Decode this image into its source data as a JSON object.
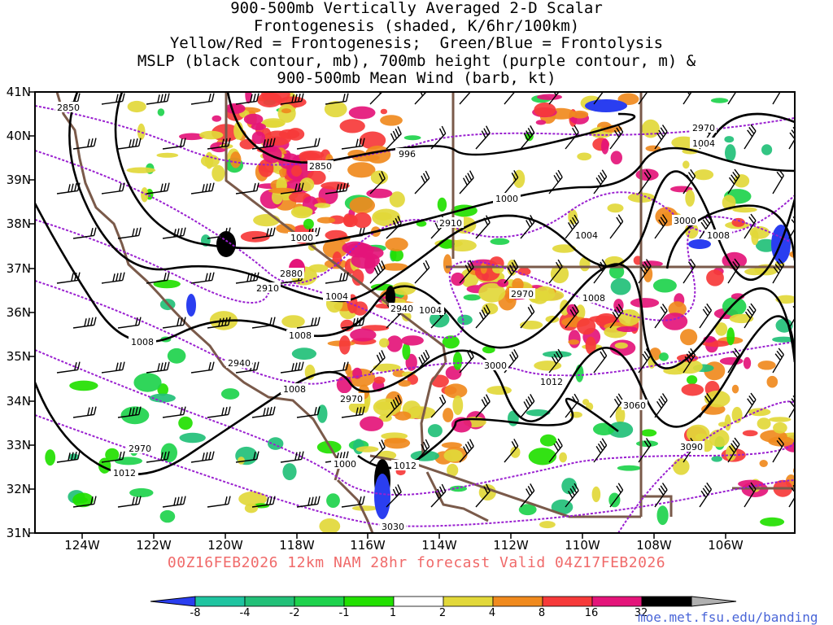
{
  "title": {
    "line1": "900-500mb Vertically Averaged 2-D Scalar",
    "line2": "Frontogenesis (shaded, K/6hr/100km)",
    "line3": "Yellow/Red = Frontogenesis;  Green/Blue = Frontolysis",
    "line4": "MSLP (black contour, mb), 700mb height (purple contour, m) &",
    "line5": "900-500mb Mean Wind (barb, kt)"
  },
  "lat_labels": [
    "41N",
    "40N",
    "39N",
    "38N",
    "37N",
    "36N",
    "35N",
    "34N",
    "33N",
    "32N",
    "31N"
  ],
  "lon_labels": [
    "124W",
    "122W",
    "120W",
    "118W",
    "116W",
    "114W",
    "112W",
    "110W",
    "108W",
    "106W"
  ],
  "valid_line": "00Z16FEB2026 12km NAM 28hr forecast Valid 04Z17FEB2026",
  "colorbar": {
    "labels": [
      "-8",
      "-4",
      "-2",
      "-1",
      "1",
      "2",
      "4",
      "8",
      "16",
      "32"
    ],
    "colors": [
      "#2a3ef0",
      "#1fc4a0",
      "#22c078",
      "#1ed24c",
      "#22e000",
      "#ffffff",
      "#e2d83a",
      "#f08a1e",
      "#f63a3a",
      "#e4157a",
      "#000000",
      "#b0b0b0"
    ]
  },
  "credit": "moe.met.fsu.edu/banding",
  "isobars": [
    {
      "label": "996"
    },
    {
      "label": "1000"
    },
    {
      "label": "1000"
    },
    {
      "label": "1004"
    },
    {
      "label": "1004"
    },
    {
      "label": "1004"
    },
    {
      "label": "1004"
    },
    {
      "label": "1008"
    },
    {
      "label": "1008"
    },
    {
      "label": "1008"
    },
    {
      "label": "1008"
    },
    {
      "label": "1008"
    },
    {
      "label": "1012"
    },
    {
      "label": "1012"
    },
    {
      "label": "1012"
    },
    {
      "label": "1012"
    },
    {
      "label": "1000"
    }
  ],
  "heights_700mb": [
    {
      "label": "2850"
    },
    {
      "label": "2850"
    },
    {
      "label": "2880"
    },
    {
      "label": "2910"
    },
    {
      "label": "2910"
    },
    {
      "label": "2940"
    },
    {
      "label": "2940"
    },
    {
      "label": "2970"
    },
    {
      "label": "2970"
    },
    {
      "label": "2970"
    },
    {
      "label": "2970"
    },
    {
      "label": "3000"
    },
    {
      "label": "3000"
    },
    {
      "label": "3030"
    },
    {
      "label": "3060"
    },
    {
      "label": "3090"
    }
  ]
}
